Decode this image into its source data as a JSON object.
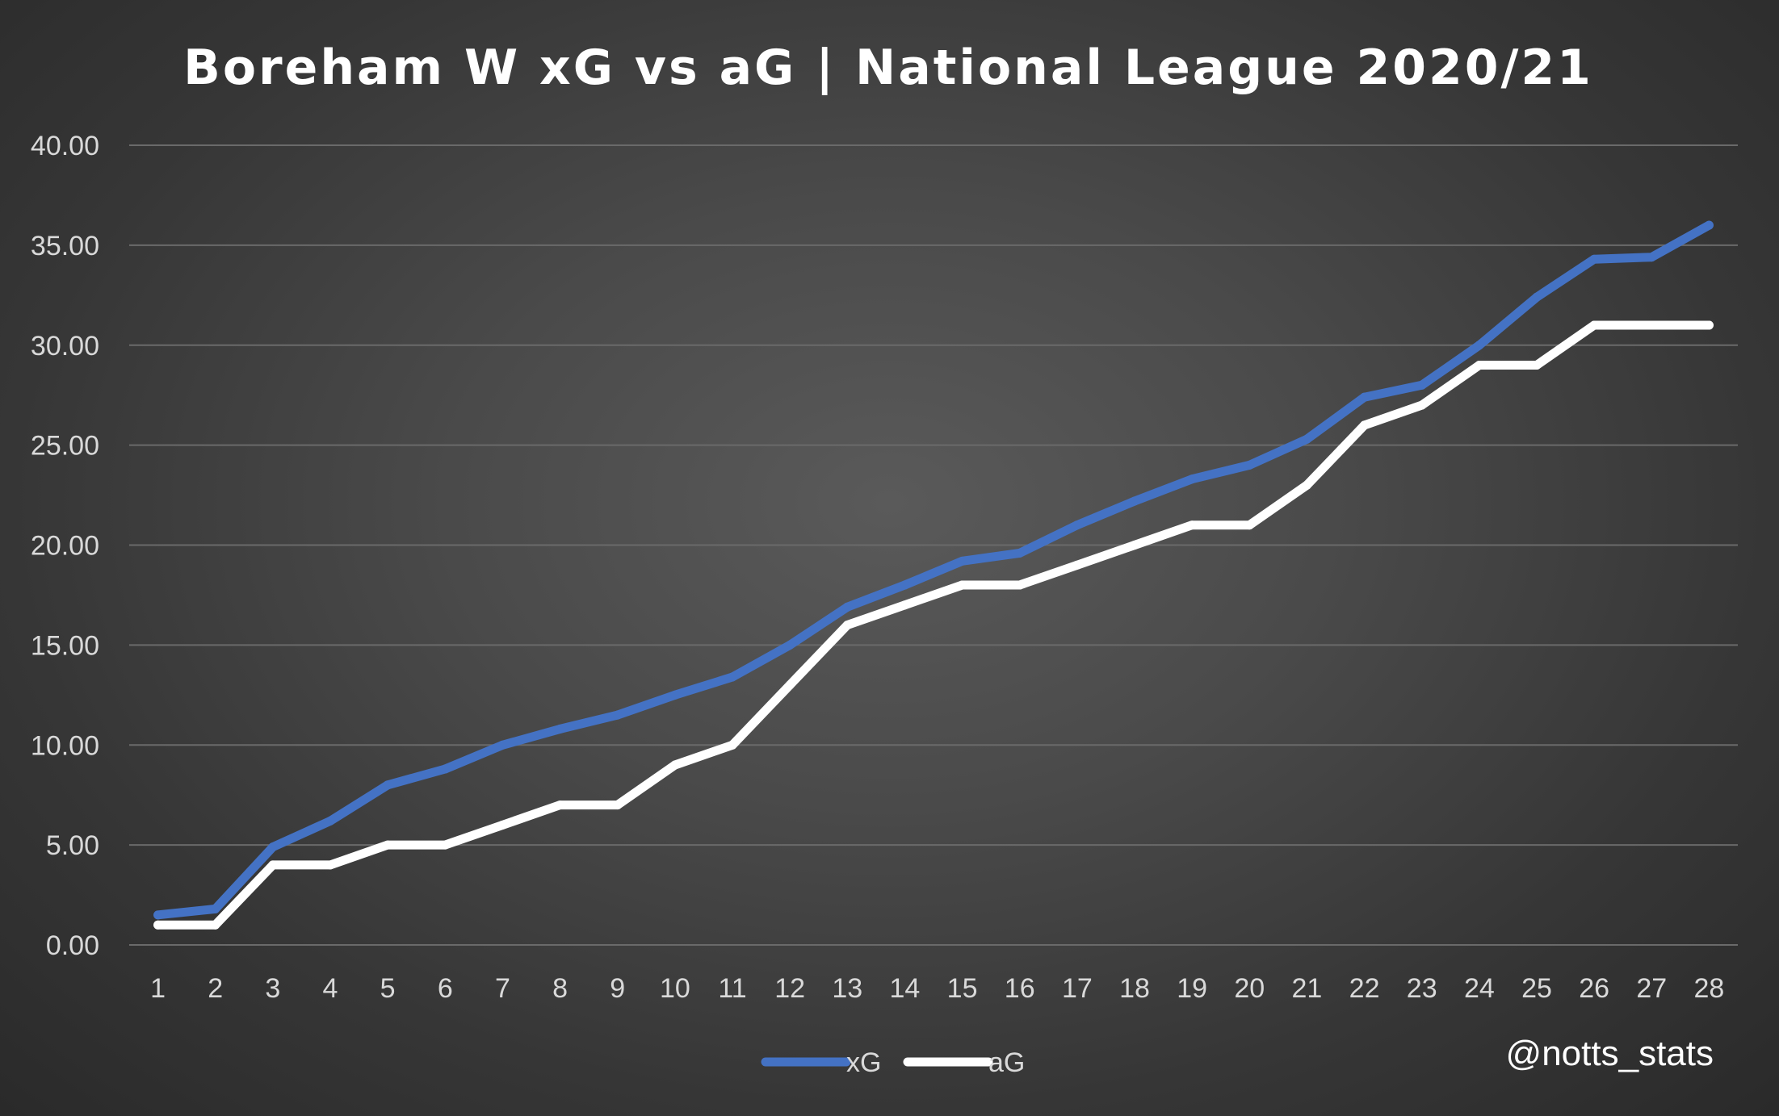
{
  "chart_data": {
    "type": "line",
    "title": "Boreham W xG vs aG | National League 2020/21",
    "xlabel": "",
    "ylabel": "",
    "x": [
      1,
      2,
      3,
      4,
      5,
      6,
      7,
      8,
      9,
      10,
      11,
      12,
      13,
      14,
      15,
      16,
      17,
      18,
      19,
      20,
      21,
      22,
      23,
      24,
      25,
      26,
      27,
      28
    ],
    "ylim": [
      0,
      40
    ],
    "yticks": [
      "0.00",
      "5.00",
      "10.00",
      "15.00",
      "20.00",
      "25.00",
      "30.00",
      "35.00",
      "40.00"
    ],
    "grid": true,
    "legend_position": "bottom",
    "series": [
      {
        "name": "xG",
        "color": "#4472c4",
        "values": [
          1.5,
          1.8,
          4.9,
          6.2,
          8.0,
          8.8,
          10.0,
          10.8,
          11.5,
          12.5,
          13.4,
          15.0,
          16.9,
          18.0,
          19.2,
          19.6,
          21.0,
          22.2,
          23.3,
          24.0,
          25.3,
          27.4,
          28.0,
          30.0,
          32.4,
          34.3,
          34.4,
          36.0
        ]
      },
      {
        "name": "aG",
        "color": "#ffffff",
        "values": [
          1,
          1,
          4,
          4,
          5,
          5,
          6,
          7,
          7,
          9,
          10,
          13,
          16,
          17,
          18,
          18,
          19,
          20,
          21,
          21,
          23,
          26,
          27,
          29,
          29,
          31,
          31,
          31
        ]
      }
    ],
    "annotations": [
      "@notts_stats"
    ]
  }
}
